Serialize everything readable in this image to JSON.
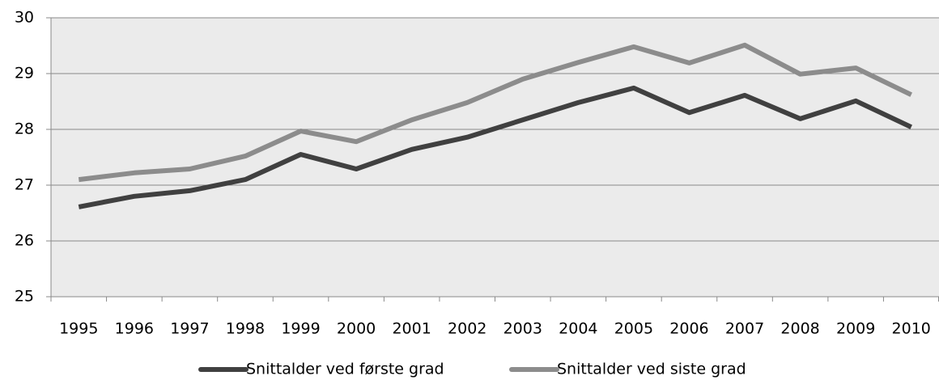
{
  "chart_data": {
    "type": "line",
    "categories": [
      "1995",
      "1996",
      "1997",
      "1998",
      "1999",
      "2000",
      "2001",
      "2002",
      "2003",
      "2004",
      "2005",
      "2006",
      "2007",
      "2008",
      "2009",
      "2010"
    ],
    "series": [
      {
        "name": "Snittalder ved første grad",
        "color": "#404040",
        "values": [
          26.61,
          26.8,
          26.9,
          27.1,
          27.55,
          27.29,
          27.64,
          27.86,
          28.17,
          28.48,
          28.74,
          28.3,
          28.61,
          28.19,
          28.51,
          28.04
        ]
      },
      {
        "name": "Snittalder ved siste grad",
        "color": "#8c8c8c",
        "values": [
          27.1,
          27.22,
          27.29,
          27.52,
          27.97,
          27.78,
          28.17,
          28.48,
          28.9,
          29.2,
          29.48,
          29.19,
          29.51,
          28.99,
          29.1,
          28.62
        ]
      }
    ],
    "ylim": [
      25,
      30
    ],
    "yticks": [
      25,
      26,
      27,
      28,
      29,
      30
    ],
    "grid": true,
    "legend": "bottom"
  }
}
